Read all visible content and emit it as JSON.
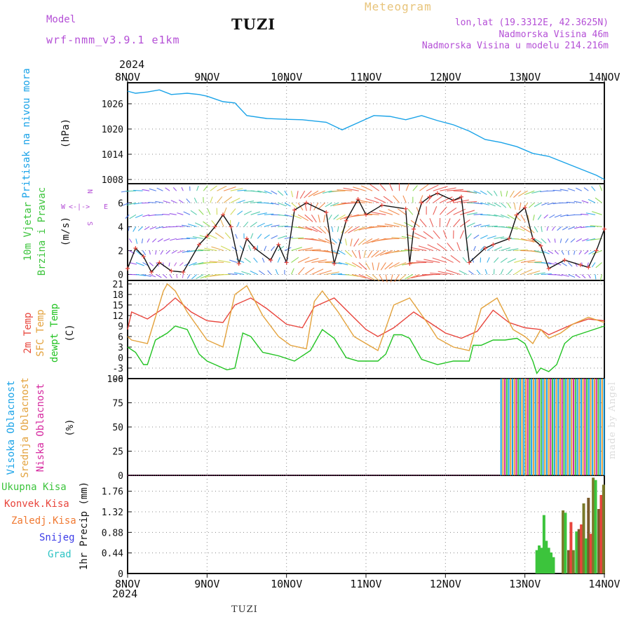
{
  "header": {
    "model_label": "Model",
    "model_name": "wrf-nmm_v3.9.1 e1km",
    "station": "TUZI",
    "meteogram_title": "Meteogram",
    "coords": "lon,lat (19.3312E, 42.3625N)",
    "elevation": "Nadmorska Visina 46m",
    "model_elevation": "Nadmorska Visina u modelu 214.216m",
    "year": "2024"
  },
  "footer": {
    "station": "TUZI",
    "year": "2024"
  },
  "credit": "made by Angel",
  "colors": {
    "pressure": "#1aa3e8",
    "temp2m": "#e8453c",
    "sfc_temp": "#e3a23c",
    "dewpt": "#22c322",
    "total_precip": "#3cc43c",
    "convective": "#e8453c",
    "frozen": "#f07830",
    "snow": "#3c3ce8",
    "graupel": "#2ec4c4",
    "cloud_high": "#1aa3e8",
    "cloud_mid": "#e3a23c",
    "cloud_low": "#d62aa0",
    "accent_violet": "#b44fd6"
  },
  "chart_data": [
    {
      "type": "line",
      "panel": "pressure",
      "xlabels": [
        "8NOV",
        "9NOV",
        "10NOV",
        "11NOV",
        "12NOV",
        "13NOV",
        "14NOV"
      ],
      "labels": [
        "Pritisak na nivou mora",
        "(hPa)"
      ],
      "yticks": [
        1008,
        1014,
        1020,
        1026
      ],
      "ylim": [
        1007,
        1031
      ],
      "grid": true,
      "series": [
        {
          "name": "Pritisak na nivou mora",
          "x": [
            0,
            0.1,
            0.25,
            0.4,
            0.55,
            0.75,
            0.9,
            1.0,
            1.2,
            1.35,
            1.5,
            1.75,
            2.0,
            2.2,
            2.5,
            2.7,
            2.9,
            3.1,
            3.3,
            3.5,
            3.7,
            3.9,
            4.1,
            4.3,
            4.5,
            4.7,
            4.9,
            5.1,
            5.3,
            5.5,
            5.7,
            5.9,
            6.0
          ],
          "y": [
            1029,
            1028.5,
            1028.8,
            1029.3,
            1028.2,
            1028.5,
            1028.2,
            1027.8,
            1026.5,
            1026.2,
            1023.2,
            1022.5,
            1022.3,
            1022.2,
            1021.6,
            1019.8,
            1021.5,
            1023.2,
            1023,
            1022.2,
            1023.2,
            1022,
            1021,
            1019.5,
            1017.5,
            1016.8,
            1015.8,
            1014.2,
            1013.5,
            1012,
            1010.5,
            1009,
            1008
          ]
        }
      ]
    },
    {
      "type": "line",
      "panel": "wind",
      "labels": [
        "10m Vjetar",
        "Brzina i Pravac",
        "(m/s)"
      ],
      "compass": [
        "W",
        "E",
        "N",
        "S"
      ],
      "yticks": [
        0,
        2,
        4,
        6
      ],
      "ylim": [
        -0.5,
        7.6
      ],
      "grid": true,
      "series": [
        {
          "name": "10m Vjetar Brzina",
          "x": [
            0,
            0.1,
            0.2,
            0.3,
            0.4,
            0.55,
            0.7,
            0.9,
            1.0,
            1.1,
            1.2,
            1.3,
            1.4,
            1.5,
            1.6,
            1.8,
            1.9,
            2.0,
            2.1,
            2.25,
            2.5,
            2.6,
            2.75,
            2.9,
            3.0,
            3.2,
            3.5,
            3.55,
            3.6,
            3.7,
            3.8,
            3.9,
            4.1,
            4.2,
            4.3,
            4.5,
            4.6,
            4.8,
            4.9,
            5.0,
            5.1,
            5.2,
            5.3,
            5.5,
            5.7,
            5.8,
            5.9,
            6.0
          ],
          "y": [
            0.5,
            2.2,
            1.5,
            0.2,
            1.0,
            0.3,
            0.2,
            2.5,
            3.2,
            4.0,
            5.0,
            4.0,
            0.9,
            3.0,
            2.2,
            1.2,
            2.5,
            1.0,
            5.4,
            6.0,
            5.2,
            0.9,
            4.5,
            6.3,
            5.0,
            5.8,
            5.5,
            0.9,
            3.8,
            6.0,
            6.5,
            6.8,
            6.2,
            6.5,
            1.0,
            2.2,
            2.5,
            3.0,
            5.0,
            5.6,
            3.0,
            2.4,
            0.5,
            1.2,
            0.8,
            0.6,
            2.0,
            3.8
          ]
        }
      ]
    },
    {
      "type": "line",
      "panel": "temperature",
      "labels": [
        "2m Temp",
        "SFC Temp",
        "dewpt Temp",
        "(C)"
      ],
      "yticks": [
        -6,
        -3,
        0,
        3,
        6,
        9,
        12,
        15,
        18,
        21
      ],
      "ylim": [
        -6,
        22
      ],
      "grid": true,
      "series": [
        {
          "name": "2m Temp",
          "x": [
            0,
            0.05,
            0.25,
            0.45,
            0.6,
            0.8,
            1.0,
            1.2,
            1.35,
            1.55,
            1.75,
            2.0,
            2.2,
            2.35,
            2.6,
            2.8,
            3.0,
            3.15,
            3.35,
            3.6,
            3.8,
            4.0,
            4.2,
            4.4,
            4.6,
            4.8,
            5.0,
            5.2,
            5.3,
            5.4,
            5.6,
            5.8,
            6.0
          ],
          "y": [
            8,
            13,
            11,
            14,
            17,
            13,
            10.5,
            10,
            15,
            17,
            14,
            9.5,
            8.5,
            14.5,
            17,
            12.5,
            8,
            6,
            8.5,
            13,
            10,
            7,
            5.5,
            7.5,
            13.5,
            10,
            8.5,
            8,
            6.5,
            7.5,
            9.5,
            11,
            10.5
          ]
        },
        {
          "name": "SFC Temp",
          "x": [
            0,
            0.05,
            0.25,
            0.45,
            0.5,
            0.6,
            0.75,
            1.0,
            1.2,
            1.35,
            1.5,
            1.7,
            1.9,
            2.05,
            2.25,
            2.35,
            2.45,
            2.65,
            2.85,
            3.0,
            3.15,
            3.35,
            3.55,
            3.8,
            3.9,
            4.1,
            4.3,
            4.45,
            4.65,
            4.85,
            5.0,
            5.1,
            5.2,
            5.3,
            5.45,
            5.6,
            5.8,
            6.0
          ],
          "y": [
            6,
            5,
            4,
            19,
            21,
            19,
            13,
            5,
            3,
            18,
            20.5,
            12,
            6,
            3.5,
            2.5,
            16,
            19,
            13,
            6,
            4,
            2,
            15,
            17,
            9,
            5.5,
            3,
            2,
            14,
            17,
            8,
            6,
            4,
            8,
            5.5,
            7,
            9.5,
            11.5,
            10
          ]
        },
        {
          "name": "dewpt Temp",
          "x": [
            0,
            0.1,
            0.2,
            0.25,
            0.35,
            0.5,
            0.6,
            0.75,
            0.9,
            1.0,
            1.1,
            1.25,
            1.35,
            1.45,
            1.55,
            1.7,
            1.9,
            2.1,
            2.3,
            2.45,
            2.6,
            2.75,
            2.9,
            3.0,
            3.15,
            3.25,
            3.35,
            3.45,
            3.55,
            3.7,
            3.9,
            4.1,
            4.3,
            4.35,
            4.45,
            4.6,
            4.75,
            4.9,
            5.0,
            5.1,
            5.15,
            5.2,
            5.3,
            5.4,
            5.5,
            5.6,
            5.8,
            6.0
          ],
          "y": [
            3,
            1.5,
            -2,
            -2,
            5,
            7,
            9,
            8,
            1,
            -1,
            -2,
            -3.5,
            -3,
            7,
            6,
            1.5,
            0.5,
            -1,
            2,
            8,
            5.5,
            0,
            -1,
            -1,
            -1,
            1,
            6.5,
            6.5,
            5.5,
            -0.5,
            -2,
            -1,
            -1,
            3.5,
            3.5,
            5,
            5,
            5.5,
            4,
            -1,
            -4.5,
            -3,
            -4,
            -2,
            4,
            6,
            7.5,
            9
          ]
        }
      ]
    },
    {
      "type": "bar",
      "panel": "cloud",
      "labels": [
        "Visoka Oblacnost",
        "Srednja Oblacnost",
        "Niska Oblacnost",
        "(%)"
      ],
      "yticks": [
        0,
        25,
        50,
        75,
        100
      ],
      "ylim": [
        0,
        100
      ],
      "grid": true,
      "bar_start_day": 4.7,
      "bar_end_day": 6.0,
      "bar_value": 100
    },
    {
      "type": "bar",
      "panel": "precip",
      "labels": [
        "1hr Precip (mm)"
      ],
      "legend": [
        "Ukupna Kisa",
        "Konvek.Kisa",
        "Zaledj.Kisa",
        "Snijeg",
        "Grad"
      ],
      "yticks": [
        0,
        0.44,
        0.88,
        1.32,
        1.76
      ],
      "ylim": [
        0,
        2.1
      ],
      "grid": true,
      "bars": [
        {
          "x": 5.15,
          "y": 0.5
        },
        {
          "x": 5.18,
          "y": 0.6
        },
        {
          "x": 5.21,
          "y": 0.55
        },
        {
          "x": 5.24,
          "y": 1.25
        },
        {
          "x": 5.27,
          "y": 0.7
        },
        {
          "x": 5.3,
          "y": 0.55
        },
        {
          "x": 5.33,
          "y": 0.45
        },
        {
          "x": 5.36,
          "y": 0.35
        },
        {
          "x": 5.48,
          "y": 1.35
        },
        {
          "x": 5.51,
          "y": 1.3
        },
        {
          "x": 5.55,
          "y": 0.5
        },
        {
          "x": 5.58,
          "y": 1.1
        },
        {
          "x": 5.61,
          "y": 0.5
        },
        {
          "x": 5.65,
          "y": 0.9
        },
        {
          "x": 5.68,
          "y": 0.95
        },
        {
          "x": 5.71,
          "y": 1.05
        },
        {
          "x": 5.74,
          "y": 1.5
        },
        {
          "x": 5.77,
          "y": 0.75
        },
        {
          "x": 5.8,
          "y": 1.62
        },
        {
          "x": 5.83,
          "y": 0.85
        },
        {
          "x": 5.86,
          "y": 2.05
        },
        {
          "x": 5.89,
          "y": 2.0
        },
        {
          "x": 5.93,
          "y": 1.38
        },
        {
          "x": 5.96,
          "y": 1.68
        },
        {
          "x": 5.99,
          "y": 1.9
        }
      ]
    }
  ]
}
